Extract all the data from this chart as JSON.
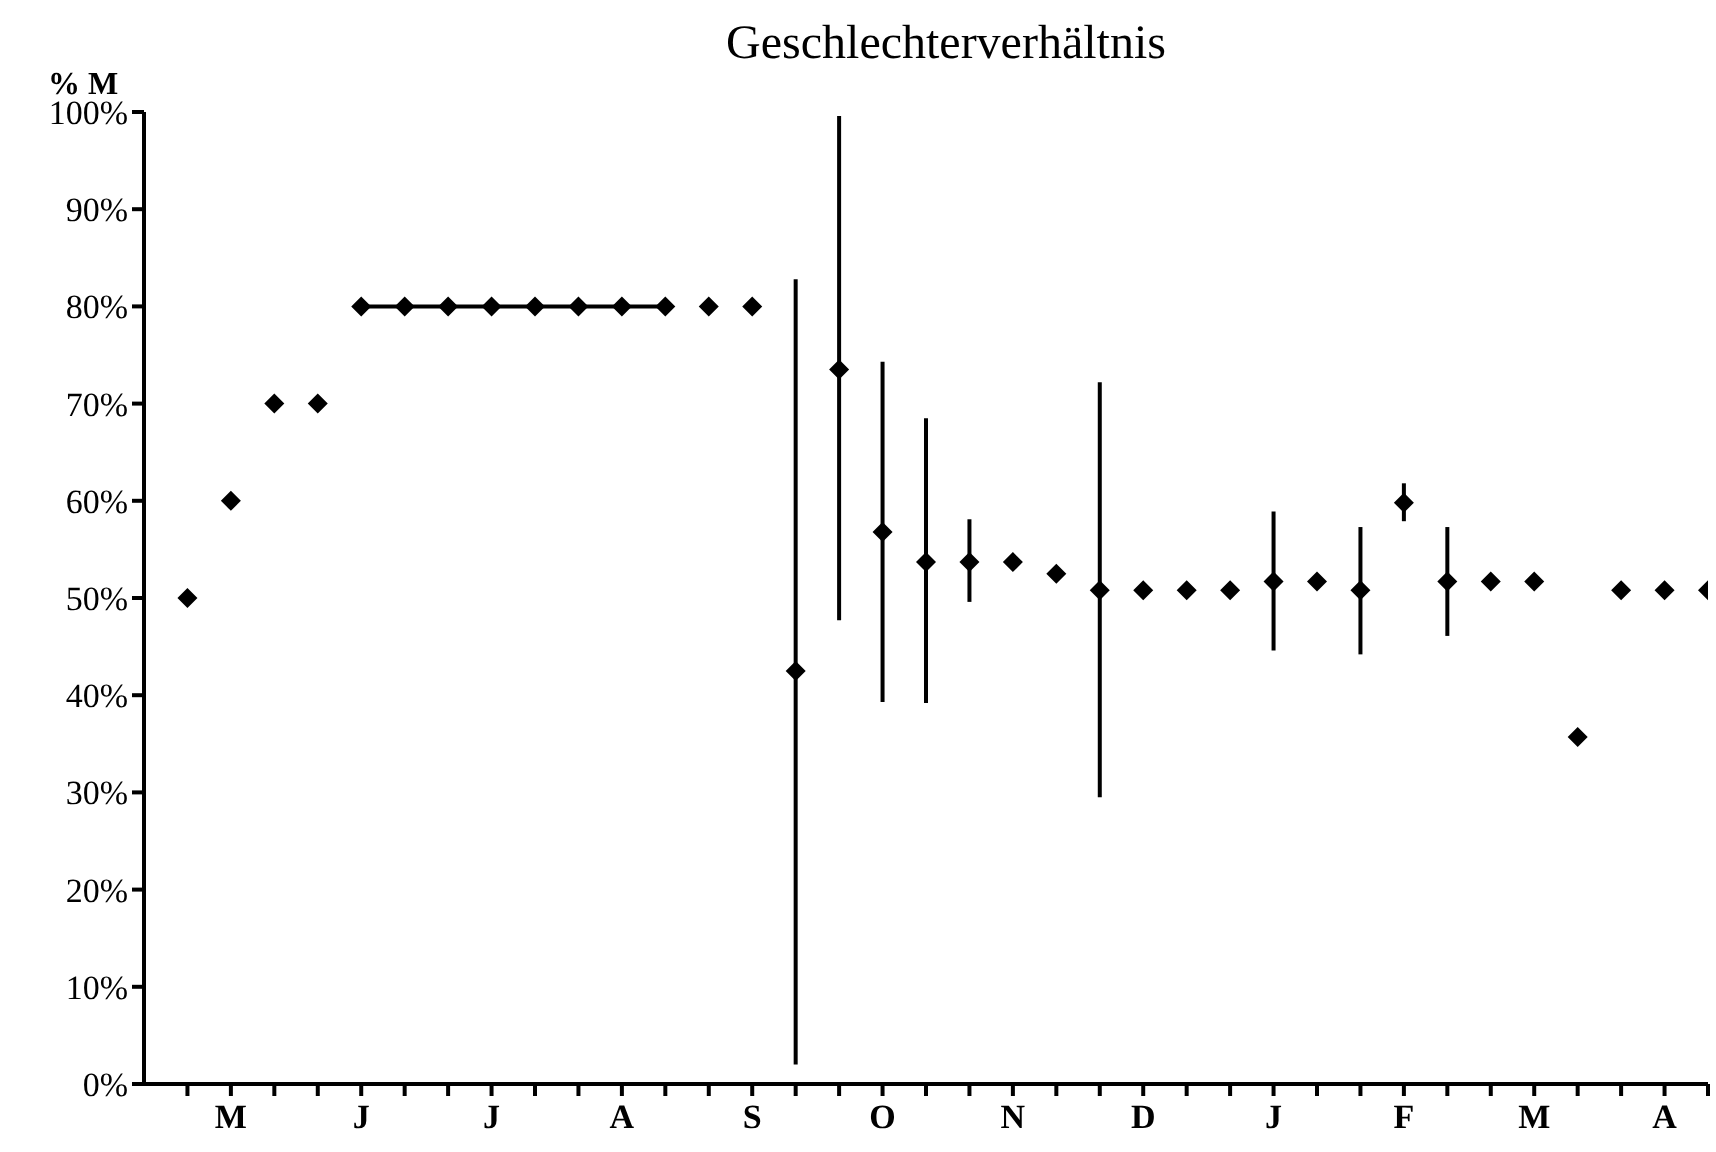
{
  "chart_data": {
    "type": "scatter",
    "title": "Geschlechterverhältnis",
    "ylabel": "% M",
    "categories": [
      null,
      "M",
      null,
      null,
      "J",
      null,
      null,
      "J",
      null,
      null,
      "A",
      null,
      null,
      "S",
      null,
      null,
      "O",
      null,
      null,
      "N",
      null,
      null,
      "D",
      null,
      null,
      "J",
      null,
      null,
      "F",
      null,
      null,
      "M",
      null,
      null,
      "A",
      null
    ],
    "ylim": [
      0,
      100
    ],
    "yticks": [
      {
        "value": 0,
        "label": "0%"
      },
      {
        "value": 10,
        "label": "10%"
      },
      {
        "value": 20,
        "label": "20%"
      },
      {
        "value": 30,
        "label": "30%"
      },
      {
        "value": 40,
        "label": "40%"
      },
      {
        "value": 50,
        "label": "50%"
      },
      {
        "value": 60,
        "label": "60%"
      },
      {
        "value": 70,
        "label": "70%"
      },
      {
        "value": 80,
        "label": "80%"
      },
      {
        "value": 90,
        "label": "90%"
      },
      {
        "value": 100,
        "label": "100%"
      }
    ],
    "marker": "diamond",
    "series": [
      {
        "type": "line",
        "color": "#000000",
        "values": [
          null,
          null,
          null,
          null,
          80,
          80,
          80,
          80,
          80,
          80,
          80,
          80,
          null,
          null,
          null,
          null,
          null,
          null,
          null,
          null,
          null,
          null,
          null,
          null,
          null,
          null,
          null,
          null,
          null,
          null,
          null,
          null,
          null,
          null,
          null,
          null
        ]
      },
      {
        "color": "#000000",
        "values": [
          50,
          60,
          70,
          70,
          null,
          null,
          null,
          null,
          null,
          null,
          null,
          null,
          80,
          80,
          42.5,
          73.5,
          56.8,
          53.7,
          53.7,
          53.7,
          52.5,
          50.8,
          50.8,
          50.8,
          50.8,
          51.7,
          51.7,
          50.8,
          59.8,
          51.7,
          51.7,
          51.7,
          35.7,
          50.8,
          50.8,
          50.8
        ],
        "errors": [
          null,
          null,
          null,
          null,
          null,
          null,
          null,
          null,
          null,
          null,
          null,
          null,
          null,
          null,
          [
            2,
            82.8
          ],
          [
            47.7,
            99.6
          ],
          [
            39.3,
            74.3
          ],
          [
            39.2,
            68.5
          ],
          [
            49.6,
            58.1
          ],
          null,
          null,
          [
            29.5,
            72.2
          ],
          null,
          null,
          null,
          [
            44.6,
            58.9
          ],
          null,
          [
            44.2,
            57.3
          ],
          [
            57.9,
            61.8
          ],
          [
            46.1,
            57.3
          ],
          null,
          null,
          null,
          null,
          null,
          null
        ]
      }
    ]
  }
}
